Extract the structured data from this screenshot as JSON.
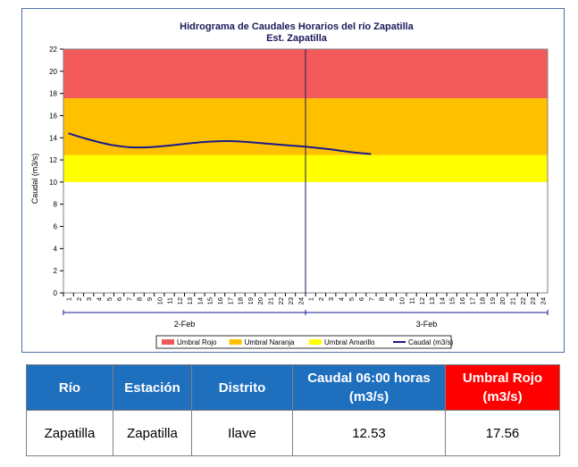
{
  "chart_data": {
    "type": "line",
    "title": "Hidrograma de Caudales Horarios del río Zapatilla",
    "subtitle": "Est. Zapatilla",
    "ylabel": "Caudal   (m3/s)",
    "xlabel": "",
    "ylim": [
      0,
      22
    ],
    "y_ticks": [
      0,
      2,
      4,
      6,
      8,
      10,
      12,
      14,
      16,
      18,
      20,
      22
    ],
    "x_hour_ticks": [
      "1",
      "2",
      "3",
      "4",
      "5",
      "6",
      "7",
      "8",
      "9",
      "10",
      "11",
      "12",
      "13",
      "14",
      "15",
      "16",
      "17",
      "18",
      "19",
      "20",
      "21",
      "22",
      "23",
      "24",
      "1",
      "2",
      "3",
      "4",
      "5",
      "6",
      "7",
      "8",
      "9",
      "10",
      "11",
      "12",
      "13",
      "14",
      "15",
      "16",
      "17",
      "18",
      "19",
      "20",
      "21",
      "22",
      "23",
      "24"
    ],
    "day_labels": [
      "2-Feb",
      "3-Feb"
    ],
    "grid": false,
    "legend_position": "bottom",
    "thresholds": [
      {
        "name": "Umbral Rojo",
        "from": 17.56,
        "to": 22,
        "color": "#f25a5a"
      },
      {
        "name": "Umbral Naranja",
        "from": 12.45,
        "to": 17.56,
        "color": "#ffc000"
      },
      {
        "name": "Umbral Amarillo",
        "from": 10,
        "to": 12.45,
        "color": "#ffff00"
      }
    ],
    "series": [
      {
        "name": "Caudal (m3/s)",
        "color": "#1a1a8c",
        "x": [
          1,
          3,
          5,
          7,
          9,
          11,
          13,
          15,
          17,
          19,
          21,
          23,
          25,
          27,
          29,
          31
        ],
        "values": [
          14.4,
          13.85,
          13.4,
          13.15,
          13.15,
          13.3,
          13.5,
          13.65,
          13.7,
          13.6,
          13.45,
          13.3,
          13.15,
          12.95,
          12.7,
          12.53
        ]
      }
    ],
    "vertical_marker_x": 24.5
  },
  "table": {
    "headers": [
      "Río",
      "Estación",
      "Distrito",
      "Caudal  06:00 horas (m3/s)",
      "Umbral Rojo (m3/s)"
    ],
    "row": [
      "Zapatilla",
      "Zapatilla",
      "Ilave",
      "12.53",
      "17.56"
    ]
  }
}
